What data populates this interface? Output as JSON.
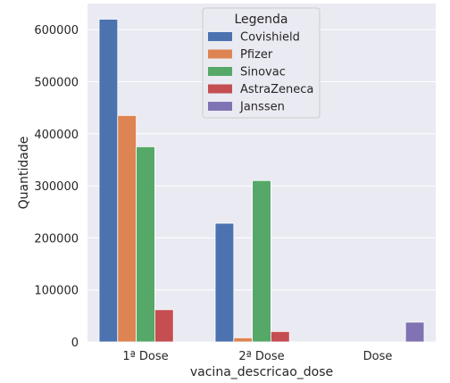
{
  "chart_data": {
    "type": "bar",
    "title": "",
    "xlabel": "vacina_descricao_dose",
    "ylabel": "Quantidade",
    "categories": [
      "1ª Dose",
      "2ª Dose",
      "Dose"
    ],
    "ylim": [
      0,
      650000
    ],
    "yticks": [
      0,
      100000,
      200000,
      300000,
      400000,
      500000,
      600000
    ],
    "grid": true,
    "legend": {
      "title": "Legenda",
      "placement": "top-center"
    },
    "series": [
      {
        "name": "Covishield",
        "color": "#4c72b0",
        "values": [
          620000,
          228000,
          0
        ]
      },
      {
        "name": "Pfizer",
        "color": "#dd8452",
        "values": [
          435000,
          8000,
          0
        ]
      },
      {
        "name": "Sinovac",
        "color": "#55a868",
        "values": [
          375000,
          310000,
          0
        ]
      },
      {
        "name": "AstraZeneca",
        "color": "#c44e52",
        "values": [
          62000,
          20000,
          0
        ]
      },
      {
        "name": "Janssen",
        "color": "#8172b3",
        "values": [
          0,
          0,
          38000
        ]
      }
    ]
  }
}
